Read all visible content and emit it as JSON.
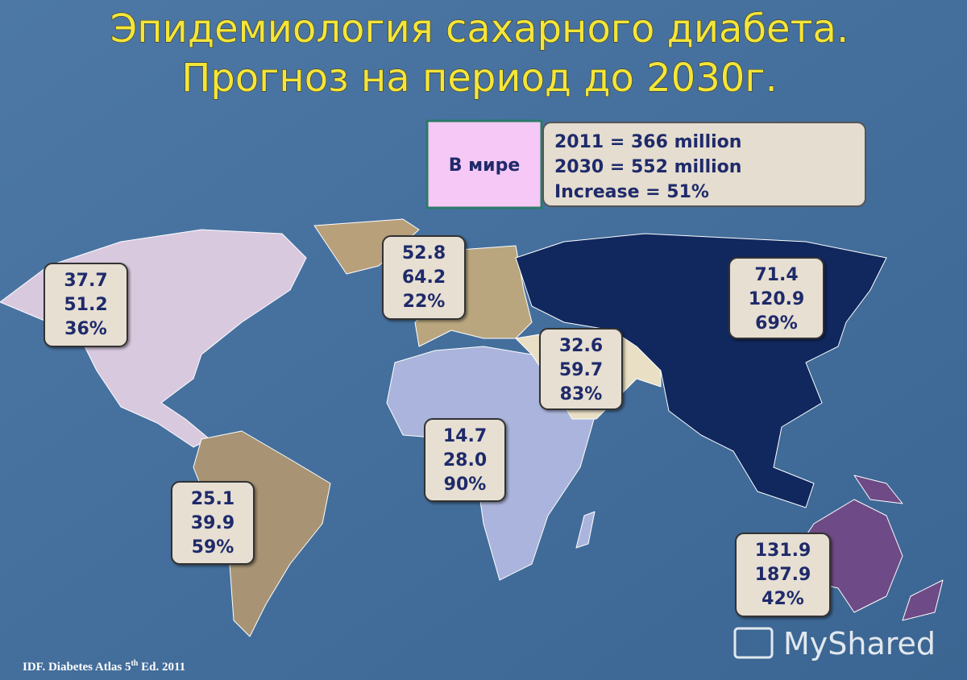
{
  "header": {
    "title_line1": "Эпидемиология сахарного диабета.",
    "title_line2": "Прогноз  на период до  2030г."
  },
  "world": {
    "label": "В мире",
    "lines": [
      "2011 = 366 million",
      "2030 = 552 million",
      "Increase = 51%"
    ]
  },
  "regions": [
    {
      "lines": [
        "37.7",
        "51.2",
        "36%"
      ]
    },
    {
      "lines": [
        "52.8",
        "64.2",
        "22%"
      ]
    },
    {
      "lines": [
        "71.4",
        "120.9",
        "69%"
      ]
    },
    {
      "lines": [
        "32.6",
        "59.7",
        "83%"
      ]
    },
    {
      "lines": [
        "14.7",
        "28.0",
        "90%"
      ]
    },
    {
      "lines": [
        "25.1",
        "39.9",
        "59%"
      ]
    },
    {
      "lines": [
        "131.9",
        "187.9",
        "42%"
      ]
    }
  ],
  "footer": {
    "source": "IDF. Diabetes Atlas 5",
    "superscript": "th",
    "edition": " Ed. 2011"
  },
  "watermark": "MyShared"
}
